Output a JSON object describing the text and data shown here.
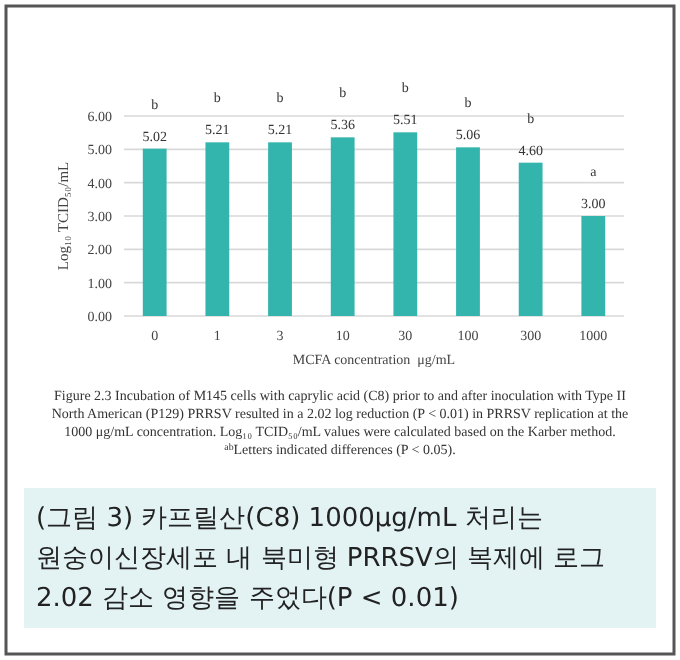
{
  "chart_data": {
    "type": "bar",
    "xlabel": "MCFA concentration  μg/mL",
    "ylabel": "Log₁₀ TCID₅₀/mL",
    "categories": [
      "0",
      "1",
      "3",
      "10",
      "30",
      "100",
      "300",
      "1000"
    ],
    "values": [
      5.02,
      5.21,
      5.21,
      5.36,
      5.51,
      5.06,
      4.6,
      3.0
    ],
    "value_labels": [
      "5.02",
      "5.21",
      "5.21",
      "5.36",
      "5.51",
      "5.06",
      "4.60",
      "3.00"
    ],
    "color": "#33b5ad",
    "ylim": [
      0,
      6
    ],
    "yticks": [
      {
        "value": 0,
        "label": "0.00"
      },
      {
        "value": 1,
        "label": "1.00"
      },
      {
        "value": 2,
        "label": "2.00"
      },
      {
        "value": 3,
        "label": "3.00"
      },
      {
        "value": 4,
        "label": "4.00"
      },
      {
        "value": 5,
        "label": "5.00"
      },
      {
        "value": 6,
        "label": "6.00"
      }
    ],
    "grid": "y",
    "annotations": [
      "b",
      "b",
      "b",
      "b",
      "b",
      "b",
      "b",
      "a",
      "Figure 2.3 Incubation of M145 cells with caprylic acid (C8) prior to and after inoculation with Type II North American (P129) PRRSV resulted in a 2.02 log reduction (P < 0.01) in PRRSV replication at the 1000 μg/mL concentration. Log₁₀ TCID₅₀/mL values were calculated based on the Karber method. $^{ab}$Letters indicated differences (P < 0.05).",
      "(그림 3) 카프릴산(C8) 1000μg/mL 처리는 원숭이신장세포 내 북미형 PRRSV의 복제에 로그 2.02 감소 영향을 주었다(P < 0.01)"
    ]
  }
}
